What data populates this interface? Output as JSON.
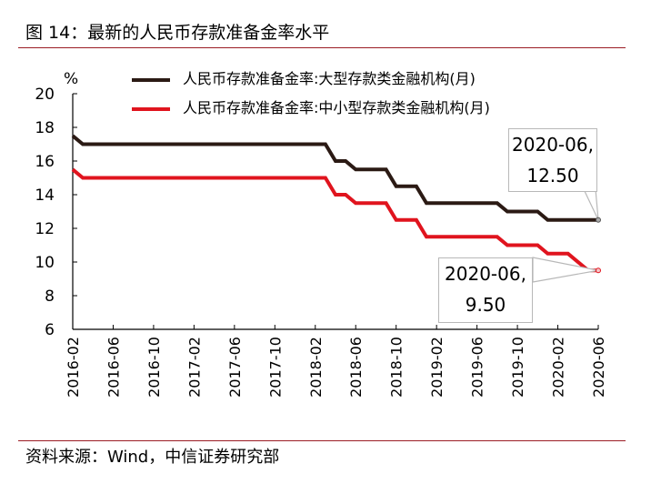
{
  "header": {
    "title": "图 14：最新的人民币存款准备金率水平"
  },
  "footer": {
    "source": "资料来源：Wind，中信证券研究部"
  },
  "colors": {
    "rule": "#9b1c24",
    "series_large": "#2b1a14",
    "series_small": "#e0141e",
    "callout_border": "#b8b8b8"
  },
  "callouts": [
    {
      "line1": "2020-06,",
      "line2": "12.50"
    },
    {
      "line1": "2020-06,",
      "line2": "9.50"
    }
  ],
  "chart_data": {
    "type": "line",
    "ylabel": "%",
    "xlabel": "",
    "ylim": [
      6,
      20
    ],
    "yticks": [
      "6",
      "8",
      "10",
      "12",
      "14",
      "16",
      "18",
      "20"
    ],
    "xlim": [
      0,
      52
    ],
    "xticks": [
      {
        "i": 0,
        "label": "2016-02"
      },
      {
        "i": 4,
        "label": "2016-06"
      },
      {
        "i": 8,
        "label": "2016-10"
      },
      {
        "i": 12,
        "label": "2017-02"
      },
      {
        "i": 16,
        "label": "2017-06"
      },
      {
        "i": 20,
        "label": "2017-10"
      },
      {
        "i": 24,
        "label": "2018-02"
      },
      {
        "i": 28,
        "label": "2018-06"
      },
      {
        "i": 32,
        "label": "2018-10"
      },
      {
        "i": 36,
        "label": "2019-02"
      },
      {
        "i": 40,
        "label": "2019-06"
      },
      {
        "i": 44,
        "label": "2019-10"
      },
      {
        "i": 48,
        "label": "2020-02"
      },
      {
        "i": 52,
        "label": "2020-06"
      }
    ],
    "series": [
      {
        "name": "人民币存款准备金率:大型存款类金融机构(月)",
        "color": "#2b1a14",
        "points": [
          [
            0,
            17.5
          ],
          [
            1,
            17.0
          ],
          [
            25,
            17.0
          ],
          [
            26,
            16.0
          ],
          [
            27,
            16.0
          ],
          [
            28,
            15.5
          ],
          [
            31,
            15.5
          ],
          [
            32,
            14.5
          ],
          [
            34,
            14.5
          ],
          [
            35,
            13.5
          ],
          [
            42,
            13.5
          ],
          [
            43,
            13.0
          ],
          [
            46,
            13.0
          ],
          [
            47,
            12.5
          ],
          [
            52,
            12.5
          ]
        ]
      },
      {
        "name": "人民币存款准备金率:中小型存款类金融机构(月)",
        "color": "#e0141e",
        "points": [
          [
            0,
            15.5
          ],
          [
            1,
            15.0
          ],
          [
            25,
            15.0
          ],
          [
            26,
            14.0
          ],
          [
            27,
            14.0
          ],
          [
            28,
            13.5
          ],
          [
            31,
            13.5
          ],
          [
            32,
            12.5
          ],
          [
            34,
            12.5
          ],
          [
            35,
            11.5
          ],
          [
            42,
            11.5
          ],
          [
            43,
            11.0
          ],
          [
            46,
            11.0
          ],
          [
            47,
            10.5
          ],
          [
            49,
            10.5
          ],
          [
            51,
            9.5
          ],
          [
            52,
            9.5
          ]
        ]
      }
    ],
    "annotations": [
      {
        "text": "2020-06, 12.50",
        "x": "2020-06",
        "y": 12.5
      },
      {
        "text": "2020-06, 9.50",
        "x": "2020-06",
        "y": 9.5
      }
    ]
  }
}
